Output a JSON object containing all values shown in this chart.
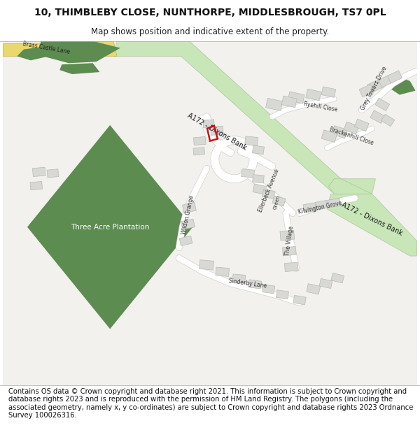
{
  "title": "10, THIMBLEBY CLOSE, NUNTHORPE, MIDDLESBROUGH, TS7 0PL",
  "subtitle": "Map shows position and indicative extent of the property.",
  "footer": "Contains OS data © Crown copyright and database right 2021. This information is subject to Crown copyright and database rights 2023 and is reproduced with the permission of HM Land Registry. The polygons (including the associated geometry, namely x, y co-ordinates) are subject to Crown copyright and database rights 2023 Ordnance Survey 100026316.",
  "map_bg": "#f2f1ed",
  "road_green": "#c8e6b8",
  "road_green_dark": "#a8c898",
  "yellow_road": "#e8d870",
  "building_fill": "#d8d8d4",
  "building_edge": "#b8b8b4",
  "green_fill": "#5c8c50",
  "red_color": "#cc1111",
  "white_road": "#ffffff",
  "white_road_edge": "#d0d0cc"
}
